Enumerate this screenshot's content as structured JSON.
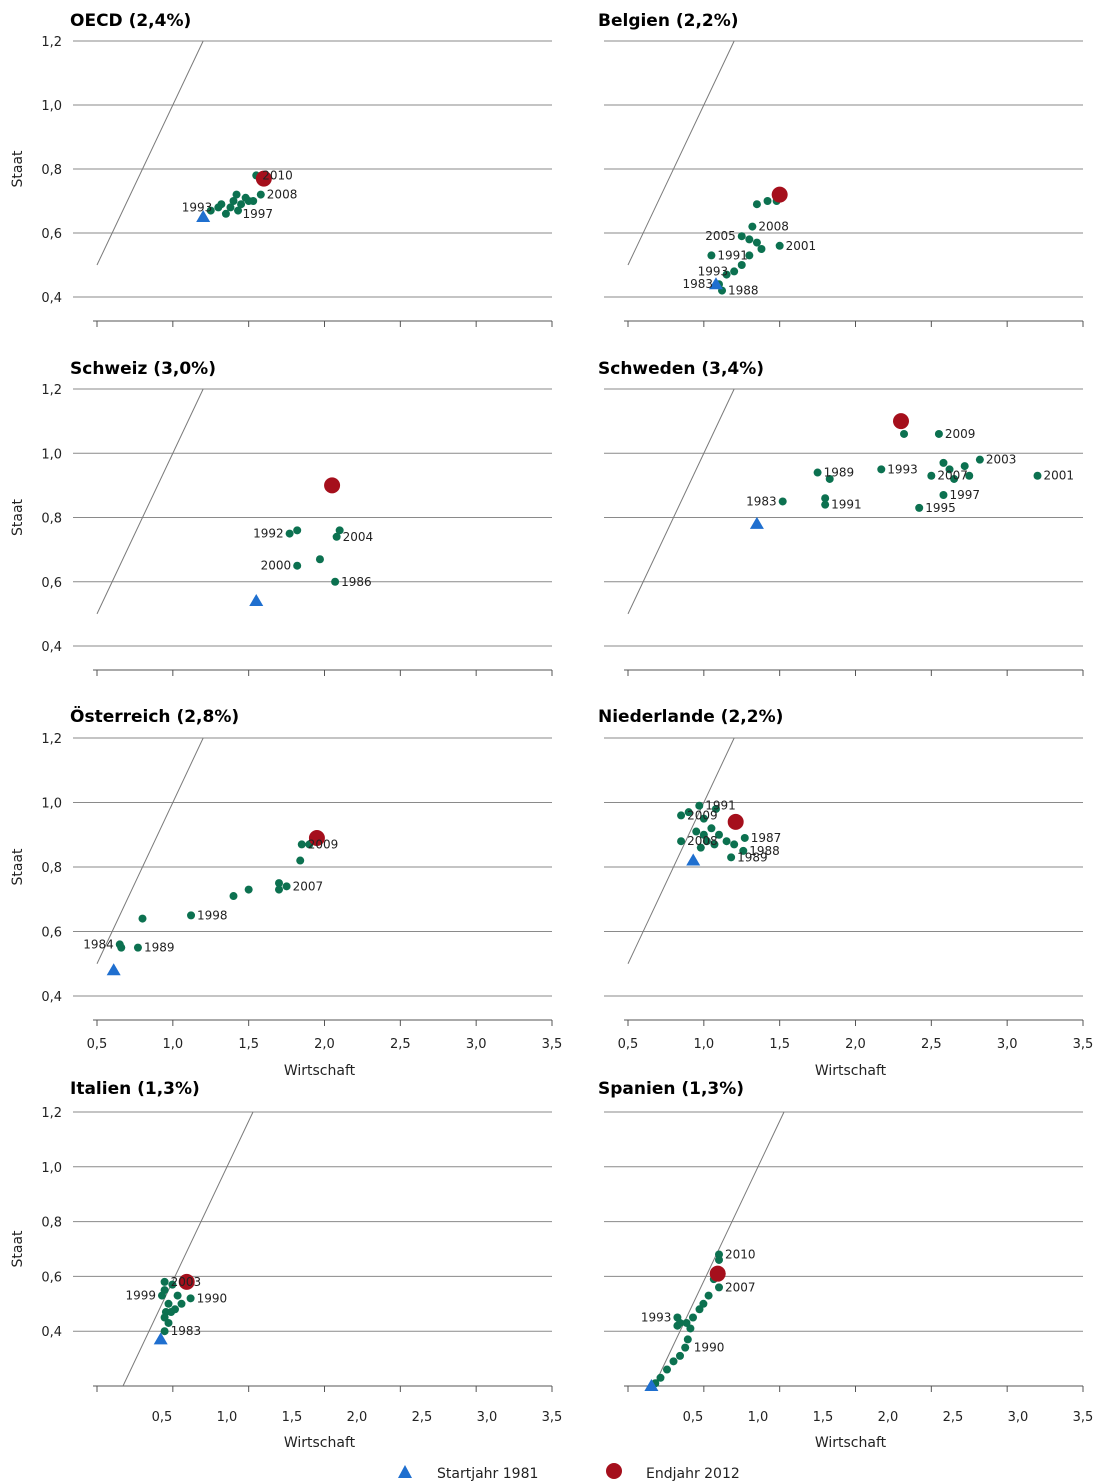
{
  "legend": {
    "start_label": "Startjahr 1981",
    "end_label": "Endjahr 2012",
    "start_color": "#1f6fcf",
    "end_color": "#a50f1c",
    "point_color": "#0c7150"
  },
  "chart_data": [
    {
      "type": "scatter",
      "title": "OECD (2,4%)",
      "ylabel": "Staat",
      "xlabel": "",
      "xlim": [
        0.5,
        3.5
      ],
      "ylim": [
        0.4,
        1.2
      ],
      "xticks": [],
      "yticks": [
        "0,4",
        "0,6",
        "0,8",
        "1,0",
        "1,2"
      ],
      "start": {
        "x": 1.2,
        "y": 0.65
      },
      "end": {
        "x": 1.6,
        "y": 0.77
      },
      "points": [
        [
          1.25,
          0.67
        ],
        [
          1.3,
          0.68
        ],
        [
          1.32,
          0.69
        ],
        [
          1.35,
          0.66
        ],
        [
          1.38,
          0.68
        ],
        [
          1.4,
          0.7
        ],
        [
          1.42,
          0.72
        ],
        [
          1.43,
          0.67
        ],
        [
          1.45,
          0.69
        ],
        [
          1.48,
          0.71
        ],
        [
          1.5,
          0.7
        ],
        [
          1.53,
          0.7
        ],
        [
          1.55,
          0.78
        ],
        [
          1.58,
          0.72
        ]
      ],
      "annotations": [
        {
          "text": "2010",
          "x": 1.55,
          "y": 0.78
        },
        {
          "text": "2008",
          "x": 1.58,
          "y": 0.72
        },
        {
          "text": "1993",
          "x": 1.3,
          "y": 0.68
        },
        {
          "text": "1997",
          "x": 1.42,
          "y": 0.66
        }
      ]
    },
    {
      "type": "scatter",
      "title": "Belgien (2,2%)",
      "ylabel": "",
      "xlabel": "",
      "xlim": [
        0.5,
        3.5
      ],
      "ylim": [
        0.4,
        1.2
      ],
      "xticks": [],
      "yticks": [],
      "start": {
        "x": 1.08,
        "y": 0.44
      },
      "end": {
        "x": 1.5,
        "y": 0.72
      },
      "points": [
        [
          1.35,
          0.69
        ],
        [
          1.42,
          0.7
        ],
        [
          1.48,
          0.7
        ],
        [
          1.32,
          0.62
        ],
        [
          1.25,
          0.59
        ],
        [
          1.3,
          0.58
        ],
        [
          1.35,
          0.57
        ],
        [
          1.38,
          0.55
        ],
        [
          1.5,
          0.56
        ],
        [
          1.3,
          0.53
        ],
        [
          1.25,
          0.5
        ],
        [
          1.2,
          0.48
        ],
        [
          1.15,
          0.47
        ],
        [
          1.05,
          0.53
        ],
        [
          1.1,
          0.44
        ],
        [
          1.12,
          0.42
        ]
      ],
      "annotations": [
        {
          "text": "2008",
          "x": 1.32,
          "y": 0.62
        },
        {
          "text": "2005",
          "x": 1.25,
          "y": 0.59
        },
        {
          "text": "2001",
          "x": 1.5,
          "y": 0.56
        },
        {
          "text": "1991",
          "x": 1.05,
          "y": 0.53
        },
        {
          "text": "1993",
          "x": 1.2,
          "y": 0.48
        },
        {
          "text": "1983",
          "x": 1.1,
          "y": 0.44
        },
        {
          "text": "1988",
          "x": 1.12,
          "y": 0.42
        }
      ]
    },
    {
      "type": "scatter",
      "title": "Schweiz (3,0%)",
      "ylabel": "Staat",
      "xlabel": "",
      "xlim": [
        0.5,
        3.5
      ],
      "ylim": [
        0.4,
        1.2
      ],
      "xticks": [],
      "yticks": [
        "0,4",
        "0,6",
        "0,8",
        "1,0",
        "1,2"
      ],
      "start": {
        "x": 1.55,
        "y": 0.54
      },
      "end": {
        "x": 2.05,
        "y": 0.9
      },
      "points": [
        [
          1.77,
          0.75
        ],
        [
          1.82,
          0.76
        ],
        [
          2.1,
          0.76
        ],
        [
          2.08,
          0.74
        ],
        [
          1.97,
          0.67
        ],
        [
          1.82,
          0.65
        ],
        [
          2.07,
          0.6
        ]
      ],
      "annotations": [
        {
          "text": "1992",
          "x": 1.77,
          "y": 0.75
        },
        {
          "text": "2004",
          "x": 2.08,
          "y": 0.74
        },
        {
          "text": "2000",
          "x": 1.82,
          "y": 0.65
        },
        {
          "text": "1986",
          "x": 2.07,
          "y": 0.6
        }
      ]
    },
    {
      "type": "scatter",
      "title": "Schweden (3,4%)",
      "ylabel": "",
      "xlabel": "",
      "xlim": [
        0.5,
        3.5
      ],
      "ylim": [
        0.4,
        1.2
      ],
      "xticks": [],
      "yticks": [],
      "start": {
        "x": 1.35,
        "y": 0.78
      },
      "end": {
        "x": 2.3,
        "y": 1.1
      },
      "points": [
        [
          2.32,
          1.06
        ],
        [
          2.55,
          1.06
        ],
        [
          2.82,
          0.98
        ],
        [
          2.58,
          0.97
        ],
        [
          2.72,
          0.96
        ],
        [
          2.62,
          0.95
        ],
        [
          2.5,
          0.93
        ],
        [
          2.65,
          0.92
        ],
        [
          2.75,
          0.93
        ],
        [
          2.17,
          0.95
        ],
        [
          1.75,
          0.94
        ],
        [
          1.83,
          0.92
        ],
        [
          3.2,
          0.93
        ],
        [
          2.58,
          0.87
        ],
        [
          1.8,
          0.86
        ],
        [
          1.8,
          0.84
        ],
        [
          1.52,
          0.85
        ],
        [
          2.42,
          0.83
        ]
      ],
      "annotations": [
        {
          "text": "2009",
          "x": 2.55,
          "y": 1.06
        },
        {
          "text": "2003",
          "x": 2.82,
          "y": 0.98
        },
        {
          "text": "2001",
          "x": 3.2,
          "y": 0.93
        },
        {
          "text": "1993",
          "x": 2.17,
          "y": 0.95
        },
        {
          "text": "2007",
          "x": 2.5,
          "y": 0.93
        },
        {
          "text": "1989",
          "x": 1.75,
          "y": 0.94
        },
        {
          "text": "1997",
          "x": 2.58,
          "y": 0.87
        },
        {
          "text": "1991",
          "x": 1.8,
          "y": 0.84
        },
        {
          "text": "1995",
          "x": 2.42,
          "y": 0.83
        },
        {
          "text": "1983",
          "x": 1.52,
          "y": 0.85
        }
      ]
    },
    {
      "type": "scatter",
      "title": "Österreich (2,8%)",
      "ylabel": "Staat",
      "xlabel": "Wirtschaft",
      "xlim": [
        0.5,
        3.5
      ],
      "ylim": [
        0.4,
        1.2
      ],
      "xticks": [
        "0,5",
        "1,0",
        "1,5",
        "2,0",
        "2,5",
        "3,0",
        "3,5"
      ],
      "yticks": [
        "0,4",
        "0,6",
        "0,8",
        "1,0",
        "1,2"
      ],
      "start": {
        "x": 0.61,
        "y": 0.48
      },
      "end": {
        "x": 1.95,
        "y": 0.89
      },
      "points": [
        [
          1.85,
          0.87
        ],
        [
          1.9,
          0.87
        ],
        [
          1.84,
          0.82
        ],
        [
          1.75,
          0.74
        ],
        [
          1.7,
          0.75
        ],
        [
          1.7,
          0.73
        ],
        [
          1.5,
          0.73
        ],
        [
          1.4,
          0.71
        ],
        [
          1.12,
          0.65
        ],
        [
          0.8,
          0.64
        ],
        [
          0.65,
          0.56
        ],
        [
          0.66,
          0.55
        ],
        [
          0.77,
          0.55
        ]
      ],
      "annotations": [
        {
          "text": "2009",
          "x": 1.85,
          "y": 0.87
        },
        {
          "text": "2007",
          "x": 1.75,
          "y": 0.74
        },
        {
          "text": "1998",
          "x": 1.12,
          "y": 0.65
        },
        {
          "text": "1984",
          "x": 0.65,
          "y": 0.56
        },
        {
          "text": "1989",
          "x": 0.77,
          "y": 0.55
        }
      ]
    },
    {
      "type": "scatter",
      "title": "Niederlande (2,2%)",
      "ylabel": "",
      "xlabel": "Wirtschaft",
      "xlim": [
        0.5,
        3.5
      ],
      "ylim": [
        0.4,
        1.2
      ],
      "xticks": [
        "0,5",
        "1,0",
        "1,5",
        "2,0",
        "2,5",
        "3,0",
        "3,5"
      ],
      "yticks": [],
      "start": {
        "x": 0.93,
        "y": 0.82
      },
      "end": {
        "x": 1.21,
        "y": 0.94
      },
      "points": [
        [
          0.97,
          0.99
        ],
        [
          0.85,
          0.96
        ],
        [
          0.9,
          0.97
        ],
        [
          1.08,
          0.98
        ],
        [
          1.0,
          0.95
        ],
        [
          1.05,
          0.92
        ],
        [
          0.95,
          0.91
        ],
        [
          1.0,
          0.9
        ],
        [
          1.1,
          0.9
        ],
        [
          0.85,
          0.88
        ],
        [
          1.02,
          0.88
        ],
        [
          1.15,
          0.88
        ],
        [
          1.27,
          0.89
        ],
        [
          0.98,
          0.86
        ],
        [
          1.07,
          0.87
        ],
        [
          1.2,
          0.87
        ],
        [
          1.26,
          0.85
        ],
        [
          1.18,
          0.83
        ]
      ],
      "annotations": [
        {
          "text": "1991",
          "x": 0.97,
          "y": 0.99
        },
        {
          "text": "2009",
          "x": 0.85,
          "y": 0.96
        },
        {
          "text": "2008",
          "x": 0.85,
          "y": 0.88
        },
        {
          "text": "1987",
          "x": 1.27,
          "y": 0.89
        },
        {
          "text": "1988",
          "x": 1.26,
          "y": 0.85
        },
        {
          "text": "1989",
          "x": 1.18,
          "y": 0.83
        }
      ]
    },
    {
      "type": "scatter",
      "title": "Italien (1,3%)",
      "ylabel": "Staat",
      "xlabel": "Wirtschaft",
      "xlim": [
        0.0,
        3.5
      ],
      "ylim": [
        0.2,
        1.2
      ],
      "xticks": [
        "0,5",
        "1,0",
        "1,5",
        "2,0",
        "2,5",
        "3,0",
        "3,5"
      ],
      "yticks": [
        "0,4",
        "0,6",
        "0,8",
        "1,0",
        "1,2"
      ],
      "start": {
        "x": 0.49,
        "y": 0.37
      },
      "end": {
        "x": 0.69,
        "y": 0.58
      },
      "points": [
        [
          0.52,
          0.58
        ],
        [
          0.58,
          0.57
        ],
        [
          0.52,
          0.55
        ],
        [
          0.5,
          0.53
        ],
        [
          0.62,
          0.53
        ],
        [
          0.72,
          0.52
        ],
        [
          0.55,
          0.5
        ],
        [
          0.65,
          0.5
        ],
        [
          0.6,
          0.48
        ],
        [
          0.53,
          0.47
        ],
        [
          0.57,
          0.47
        ],
        [
          0.52,
          0.45
        ],
        [
          0.55,
          0.43
        ],
        [
          0.52,
          0.4
        ]
      ],
      "annotations": [
        {
          "text": "2003",
          "x": 0.52,
          "y": 0.58
        },
        {
          "text": "1999",
          "x": 0.5,
          "y": 0.53
        },
        {
          "text": "1990",
          "x": 0.72,
          "y": 0.52
        },
        {
          "text": "1983",
          "x": 0.52,
          "y": 0.4
        }
      ]
    },
    {
      "type": "scatter",
      "title": "Spanien (1,3%)",
      "ylabel": "",
      "xlabel": "Wirtschaft",
      "xlim": [
        0.0,
        3.5
      ],
      "ylim": [
        0.2,
        1.2
      ],
      "xticks": [
        "0,5",
        "1,0",
        "1,5",
        "2,0",
        "2,5",
        "3,0",
        "3,5"
      ],
      "yticks": [],
      "start": {
        "x": 0.18,
        "y": 0.2
      },
      "end": {
        "x": 0.69,
        "y": 0.61
      },
      "points": [
        [
          0.7,
          0.68
        ],
        [
          0.7,
          0.66
        ],
        [
          0.72,
          0.61
        ],
        [
          0.66,
          0.59
        ],
        [
          0.7,
          0.56
        ],
        [
          0.62,
          0.53
        ],
        [
          0.58,
          0.5
        ],
        [
          0.55,
          0.48
        ],
        [
          0.5,
          0.45
        ],
        [
          0.38,
          0.45
        ],
        [
          0.4,
          0.43
        ],
        [
          0.45,
          0.43
        ],
        [
          0.38,
          0.42
        ],
        [
          0.48,
          0.41
        ],
        [
          0.46,
          0.37
        ],
        [
          0.44,
          0.34
        ],
        [
          0.4,
          0.31
        ],
        [
          0.35,
          0.29
        ],
        [
          0.3,
          0.26
        ],
        [
          0.25,
          0.23
        ],
        [
          0.21,
          0.21
        ]
      ],
      "annotations": [
        {
          "text": "2010",
          "x": 0.7,
          "y": 0.68
        },
        {
          "text": "2007",
          "x": 0.7,
          "y": 0.56
        },
        {
          "text": "1993",
          "x": 0.38,
          "y": 0.45
        },
        {
          "text": "1990",
          "x": 0.46,
          "y": 0.34
        }
      ]
    }
  ]
}
